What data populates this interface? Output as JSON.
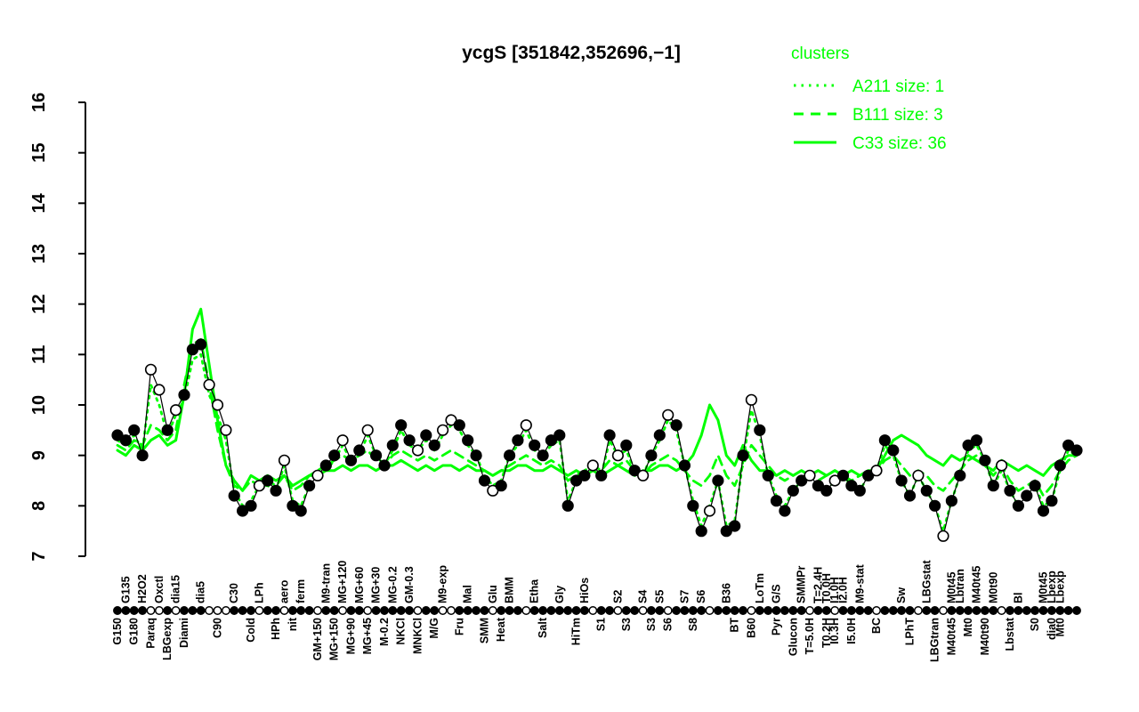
{
  "title": "ycgS [351842,352696,−1]",
  "legend": {
    "title": "clusters",
    "items": [
      {
        "label": "A211 size: 1",
        "style": "dotted",
        "cluster": "A211",
        "size": 1
      },
      {
        "label": "B111 size: 3",
        "style": "dashed",
        "cluster": "B111",
        "size": 3
      },
      {
        "label": "C33 size: 36",
        "style": "solid",
        "cluster": "C33",
        "size": 36
      }
    ]
  },
  "colors": {
    "cluster_green": "#00FF00",
    "data_black": "#000000",
    "background": "#FFFFFF"
  },
  "chart_data": {
    "type": "line",
    "title": "ycgS [351842,352696,−1]",
    "xlabel": "",
    "ylabel": "",
    "ylim": [
      7,
      16
    ],
    "yticks": [
      7,
      8,
      9,
      10,
      11,
      12,
      13,
      14,
      15,
      16
    ],
    "grid": false,
    "legend_position": "top-right",
    "x_count": 116,
    "series": [
      {
        "name": "ycgS expression",
        "role": "gene-data",
        "color": "#000000",
        "marker": "circle",
        "values": [
          9.4,
          9.3,
          9.5,
          9.0,
          10.7,
          10.3,
          9.5,
          9.9,
          10.2,
          11.1,
          11.2,
          10.4,
          10.0,
          9.5,
          8.2,
          7.9,
          8.0,
          8.4,
          8.5,
          8.3,
          8.9,
          8.0,
          7.9,
          8.4,
          8.6,
          8.8,
          9.0,
          9.3,
          8.9,
          9.1,
          9.5,
          9.0,
          8.8,
          9.2,
          9.6,
          9.3,
          9.1,
          9.4,
          9.2,
          9.5,
          9.7,
          9.6,
          9.3,
          9.0,
          8.5,
          8.3,
          8.4,
          9.0,
          9.3,
          9.6,
          9.2,
          9.0,
          9.3,
          9.4,
          8.0,
          8.5,
          8.6,
          8.8,
          8.6,
          9.4,
          9.0,
          9.2,
          8.7,
          8.6,
          9.0,
          9.4,
          9.8,
          9.6,
          8.8,
          8.0,
          7.5,
          7.9,
          8.5,
          7.5,
          7.6,
          9.0,
          10.1,
          9.5,
          8.6,
          8.1,
          7.9,
          8.3,
          8.5,
          8.6,
          8.4,
          8.3,
          8.5,
          8.6,
          8.4,
          8.3,
          8.6,
          8.7,
          9.3,
          9.1,
          8.5,
          8.2,
          8.6,
          8.3,
          8.0,
          7.4,
          8.1,
          8.6,
          9.2,
          9.3,
          8.9,
          8.4,
          8.8,
          8.3,
          8.0,
          8.2,
          8.4,
          7.9,
          8.1,
          8.8,
          9.2,
          9.1
        ],
        "open_markers": [
          4,
          5,
          7,
          11,
          12,
          13,
          17,
          20,
          24,
          27,
          30,
          36,
          39,
          40,
          45,
          49,
          57,
          60,
          63,
          66,
          71,
          76,
          83,
          86,
          91,
          96,
          99,
          106
        ]
      },
      {
        "name": "A211",
        "role": "cluster-centroid",
        "color": "#00FF00",
        "style": "dotted",
        "values": [
          9.3,
          9.2,
          9.4,
          9.1,
          10.4,
          10.0,
          9.4,
          9.8,
          10.1,
          10.9,
          11.0,
          10.2,
          9.8,
          9.3,
          8.3,
          8.0,
          8.1,
          8.4,
          8.4,
          8.3,
          8.8,
          8.1,
          8.0,
          8.4,
          8.6,
          8.7,
          8.9,
          9.2,
          8.9,
          9.0,
          9.4,
          9.0,
          8.8,
          9.1,
          9.5,
          9.2,
          9.1,
          9.3,
          9.1,
          9.4,
          9.6,
          9.5,
          9.2,
          9.0,
          8.6,
          8.4,
          8.5,
          9.0,
          9.2,
          9.5,
          9.1,
          9.0,
          9.2,
          9.3,
          8.1,
          8.5,
          8.6,
          8.7,
          8.6,
          9.3,
          9.0,
          9.1,
          8.7,
          8.6,
          9.0,
          9.3,
          9.7,
          9.5,
          8.8,
          8.1,
          7.6,
          8.0,
          8.5,
          7.6,
          7.7,
          8.9,
          9.9,
          9.4,
          8.6,
          8.2,
          8.0,
          8.3,
          8.5,
          8.6,
          8.4,
          8.3,
          8.5,
          8.6,
          8.4,
          8.3,
          8.6,
          8.7,
          9.2,
          9.0,
          8.5,
          8.2,
          8.6,
          8.3,
          8.0,
          7.5,
          8.1,
          8.6,
          9.1,
          9.2,
          8.9,
          8.4,
          8.7,
          8.3,
          8.0,
          8.2,
          8.4,
          8.0,
          8.1,
          8.7,
          9.1,
          9.0
        ]
      },
      {
        "name": "B111",
        "role": "cluster-centroid",
        "color": "#00FF00",
        "style": "dashed",
        "values": [
          9.2,
          9.1,
          9.3,
          9.2,
          9.6,
          9.5,
          9.3,
          9.5,
          10.4,
          11.2,
          11.3,
          10.4,
          9.5,
          8.8,
          8.4,
          8.3,
          8.5,
          8.4,
          8.5,
          8.4,
          8.6,
          8.3,
          8.4,
          8.6,
          8.7,
          8.8,
          8.9,
          9.0,
          8.9,
          9.0,
          9.1,
          8.9,
          8.8,
          9.0,
          9.1,
          9.0,
          8.9,
          9.0,
          8.9,
          9.0,
          9.1,
          9.0,
          8.9,
          8.8,
          8.7,
          8.6,
          8.7,
          8.8,
          8.9,
          9.0,
          8.9,
          8.8,
          8.9,
          8.8,
          8.5,
          8.6,
          8.7,
          8.8,
          8.7,
          8.9,
          8.8,
          8.9,
          8.7,
          8.6,
          8.8,
          8.9,
          9.0,
          8.9,
          8.7,
          8.5,
          8.4,
          8.6,
          9.0,
          8.6,
          8.4,
          8.8,
          9.2,
          9.0,
          8.8,
          8.6,
          8.5,
          8.6,
          8.7,
          8.6,
          8.5,
          8.6,
          8.7,
          8.6,
          8.5,
          8.6,
          8.7,
          8.7,
          8.9,
          9.0,
          8.8,
          8.6,
          8.7,
          8.6,
          8.4,
          8.3,
          8.5,
          8.7,
          8.9,
          9.0,
          8.8,
          8.6,
          8.8,
          8.5,
          8.3,
          8.4,
          8.5,
          8.2,
          8.4,
          8.7,
          8.9,
          9.0
        ]
      },
      {
        "name": "C33",
        "role": "cluster-centroid",
        "color": "#00FF00",
        "style": "solid",
        "values": [
          9.1,
          9.0,
          9.2,
          9.1,
          9.3,
          9.4,
          9.2,
          9.3,
          10.2,
          11.5,
          11.9,
          10.8,
          9.7,
          8.8,
          8.5,
          8.3,
          8.6,
          8.5,
          8.6,
          8.5,
          8.6,
          8.4,
          8.5,
          8.6,
          8.6,
          8.7,
          8.7,
          8.8,
          8.7,
          8.8,
          8.8,
          8.7,
          8.8,
          8.8,
          8.9,
          8.8,
          8.7,
          8.8,
          8.7,
          8.8,
          8.8,
          8.7,
          8.8,
          8.7,
          8.7,
          8.6,
          8.7,
          8.7,
          8.8,
          8.8,
          8.7,
          8.7,
          8.8,
          8.7,
          8.6,
          8.7,
          8.6,
          8.7,
          8.6,
          8.7,
          8.8,
          8.7,
          8.6,
          8.7,
          8.7,
          8.8,
          8.8,
          8.7,
          8.8,
          9.0,
          9.4,
          10.0,
          9.7,
          9.0,
          8.8,
          9.2,
          8.9,
          8.7,
          8.7,
          8.6,
          8.7,
          8.6,
          8.7,
          8.6,
          8.7,
          8.6,
          8.7,
          8.6,
          8.7,
          8.6,
          8.7,
          8.7,
          9.0,
          9.3,
          9.4,
          9.3,
          9.2,
          9.0,
          8.9,
          8.8,
          9.0,
          8.9,
          9.0,
          8.9,
          8.8,
          8.7,
          8.9,
          8.8,
          8.7,
          8.8,
          8.7,
          8.6,
          8.8,
          8.9,
          9.0,
          9.0
        ]
      }
    ],
    "x_labels_top": [
      {
        "i": 1,
        "label": "G135"
      },
      {
        "i": 3,
        "label": "H2O2"
      },
      {
        "i": 5,
        "label": "Oxctl"
      },
      {
        "i": 7,
        "label": "dia15"
      },
      {
        "i": 10,
        "label": "dia5"
      },
      {
        "i": 14,
        "label": "C30"
      },
      {
        "i": 17,
        "label": "LPh"
      },
      {
        "i": 20,
        "label": "aero"
      },
      {
        "i": 22,
        "label": "ferm"
      },
      {
        "i": 25,
        "label": "M9-tran"
      },
      {
        "i": 27,
        "label": "MG+120"
      },
      {
        "i": 29,
        "label": "MG+60"
      },
      {
        "i": 31,
        "label": "MG+30"
      },
      {
        "i": 33,
        "label": "MG-0.2"
      },
      {
        "i": 35,
        "label": "GM-0.3"
      },
      {
        "i": 39,
        "label": "M9-exp"
      },
      {
        "i": 42,
        "label": "Mal"
      },
      {
        "i": 45,
        "label": "Glu"
      },
      {
        "i": 47,
        "label": "BMM"
      },
      {
        "i": 50,
        "label": "Etha"
      },
      {
        "i": 53,
        "label": "Gly"
      },
      {
        "i": 56,
        "label": "HiOs"
      },
      {
        "i": 60,
        "label": "S2"
      },
      {
        "i": 63,
        "label": "S4"
      },
      {
        "i": 65,
        "label": "S5"
      },
      {
        "i": 68,
        "label": "S7"
      },
      {
        "i": 70,
        "label": "S6"
      },
      {
        "i": 73,
        "label": "B36"
      },
      {
        "i": 77,
        "label": "LoTm"
      },
      {
        "i": 79,
        "label": "G/S"
      },
      {
        "i": 82,
        "label": "SMMPr"
      },
      {
        "i": 84,
        "label": "T=2.4H"
      },
      {
        "i": 85,
        "label": "T0.0H"
      },
      {
        "i": 86,
        "label": "I1.0H"
      },
      {
        "i": 87,
        "label": "I2.0H"
      },
      {
        "i": 89,
        "label": "M9-stat"
      },
      {
        "i": 94,
        "label": "Sw"
      },
      {
        "i": 97,
        "label": "LBGstat"
      },
      {
        "i": 100,
        "label": "M0t45"
      },
      {
        "i": 101,
        "label": "Lbtran"
      },
      {
        "i": 103,
        "label": "M40t45"
      },
      {
        "i": 105,
        "label": "M0t90"
      },
      {
        "i": 108,
        "label": "Bl"
      },
      {
        "i": 111,
        "label": "M0t45"
      },
      {
        "i": 112,
        "label": "Lbexp"
      },
      {
        "i": 113,
        "label": "Lbexp"
      }
    ],
    "x_labels_bottom": [
      {
        "i": 0,
        "label": "G150"
      },
      {
        "i": 2,
        "label": "G180"
      },
      {
        "i": 4,
        "label": "Paraq"
      },
      {
        "i": 6,
        "label": "LBGexp"
      },
      {
        "i": 8,
        "label": "Diami"
      },
      {
        "i": 12,
        "label": "C90"
      },
      {
        "i": 16,
        "label": "Cold"
      },
      {
        "i": 19,
        "label": "HPh"
      },
      {
        "i": 21,
        "label": "nit"
      },
      {
        "i": 24,
        "label": "GM+150"
      },
      {
        "i": 26,
        "label": "MG+150"
      },
      {
        "i": 28,
        "label": "MG+90"
      },
      {
        "i": 30,
        "label": "MG+45"
      },
      {
        "i": 32,
        "label": "M-0.2"
      },
      {
        "i": 34,
        "label": "NKCl"
      },
      {
        "i": 36,
        "label": "MNKCl"
      },
      {
        "i": 38,
        "label": "M/G"
      },
      {
        "i": 41,
        "label": "Fru"
      },
      {
        "i": 44,
        "label": "SMM"
      },
      {
        "i": 46,
        "label": "Heat"
      },
      {
        "i": 51,
        "label": "Salt"
      },
      {
        "i": 55,
        "label": "HiTm"
      },
      {
        "i": 58,
        "label": "S1"
      },
      {
        "i": 61,
        "label": "S3"
      },
      {
        "i": 64,
        "label": "S3"
      },
      {
        "i": 66,
        "label": "S6"
      },
      {
        "i": 69,
        "label": "S8"
      },
      {
        "i": 74,
        "label": "BT"
      },
      {
        "i": 76,
        "label": "B60"
      },
      {
        "i": 79,
        "label": "Pyr"
      },
      {
        "i": 81,
        "label": "Glucon"
      },
      {
        "i": 83,
        "label": "T=5.0H"
      },
      {
        "i": 85,
        "label": "T0.2H"
      },
      {
        "i": 86,
        "label": "I0.3H"
      },
      {
        "i": 88,
        "label": "I5.0H"
      },
      {
        "i": 91,
        "label": "BC"
      },
      {
        "i": 95,
        "label": "LPhT"
      },
      {
        "i": 98,
        "label": "LBGtran"
      },
      {
        "i": 100,
        "label": "M40t45"
      },
      {
        "i": 102,
        "label": "Mt0"
      },
      {
        "i": 104,
        "label": "M40t90"
      },
      {
        "i": 107,
        "label": "Lbstat"
      },
      {
        "i": 110,
        "label": "S0"
      },
      {
        "i": 112,
        "label": "dia0"
      },
      {
        "i": 113,
        "label": "Mt0"
      }
    ]
  }
}
